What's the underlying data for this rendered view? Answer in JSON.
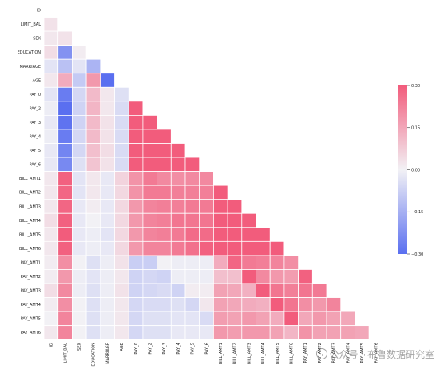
{
  "chart_data": {
    "type": "heatmap",
    "triangle": "lower",
    "labels": [
      "ID",
      "LIMIT_BAL",
      "SEX",
      "EDUCATION",
      "MARRIAGE",
      "AGE",
      "PAY_0",
      "PAY_2",
      "PAY_3",
      "PAY_4",
      "PAY_5",
      "PAY_6",
      "BILL_AMT1",
      "BILL_AMT2",
      "BILL_AMT3",
      "BILL_AMT4",
      "BILL_AMT5",
      "BILL_AMT6",
      "PAY_AMT1",
      "PAY_AMT2",
      "PAY_AMT3",
      "PAY_AMT4",
      "PAY_AMT5",
      "PAY_AMT6"
    ],
    "colorbar": {
      "vmin": -0.3,
      "vmax": 0.3,
      "ticks": [
        0.3,
        0.15,
        0.0,
        -0.15,
        -0.3
      ],
      "tick_labels": [
        "0.30",
        "0.15",
        "0.00",
        "−0.15",
        "−0.30"
      ],
      "colors": {
        "negative": "#5a6ff0",
        "neutral": "#f2f1f5",
        "positive": "#f25c7c"
      }
    },
    "rows": [
      [],
      [
        0.03
      ],
      [
        0.02,
        0.03
      ],
      [
        0.04,
        -0.22,
        0.01
      ],
      [
        -0.03,
        -0.11,
        -0.03,
        -0.14
      ],
      [
        0.02,
        0.14,
        -0.09,
        0.18,
        -0.3
      ],
      [
        -0.03,
        -0.27,
        -0.06,
        0.11,
        0.02,
        -0.04
      ],
      [
        -0.01,
        -0.3,
        -0.07,
        0.12,
        0.02,
        -0.05,
        0.3
      ],
      [
        -0.02,
        -0.29,
        -0.07,
        0.11,
        0.03,
        -0.05,
        0.3,
        0.3
      ],
      [
        -0.01,
        -0.27,
        -0.06,
        0.11,
        0.03,
        -0.05,
        0.3,
        0.3,
        0.3
      ],
      [
        -0.02,
        -0.25,
        -0.06,
        0.1,
        0.04,
        -0.05,
        0.3,
        0.3,
        0.3,
        0.3
      ],
      [
        -0.02,
        -0.24,
        -0.04,
        0.09,
        0.03,
        -0.05,
        0.3,
        0.3,
        0.3,
        0.3,
        0.3
      ],
      [
        0.02,
        0.29,
        -0.03,
        0.02,
        -0.02,
        0.06,
        0.19,
        0.24,
        0.21,
        0.2,
        0.21,
        0.21
      ],
      [
        0.02,
        0.28,
        -0.03,
        0.02,
        -0.02,
        0.05,
        0.19,
        0.24,
        0.24,
        0.23,
        0.23,
        0.23,
        0.3
      ],
      [
        0.02,
        0.28,
        -0.02,
        0.01,
        -0.02,
        0.05,
        0.18,
        0.22,
        0.23,
        0.23,
        0.24,
        0.24,
        0.3,
        0.3
      ],
      [
        0.04,
        0.29,
        -0.02,
        0.0,
        -0.02,
        0.05,
        0.18,
        0.22,
        0.23,
        0.25,
        0.25,
        0.25,
        0.3,
        0.3,
        0.3
      ],
      [
        0.02,
        0.3,
        -0.02,
        -0.01,
        -0.03,
        0.05,
        0.18,
        0.22,
        0.23,
        0.24,
        0.27,
        0.27,
        0.3,
        0.3,
        0.3,
        0.3
      ],
      [
        0.02,
        0.29,
        -0.02,
        -0.01,
        -0.02,
        0.05,
        0.18,
        0.22,
        0.22,
        0.24,
        0.26,
        0.29,
        0.3,
        0.3,
        0.3,
        0.3,
        0.3
      ],
      [
        0.01,
        0.2,
        0.0,
        -0.04,
        -0.01,
        0.03,
        -0.08,
        -0.08,
        0.0,
        -0.01,
        -0.01,
        -0.01,
        0.14,
        0.28,
        0.24,
        0.23,
        0.22,
        0.2
      ],
      [
        0.01,
        0.18,
        -0.01,
        -0.03,
        -0.01,
        0.02,
        -0.07,
        -0.06,
        -0.07,
        -0.01,
        -0.01,
        -0.01,
        0.1,
        0.1,
        0.3,
        0.21,
        0.18,
        0.17,
        0.29
      ],
      [
        0.04,
        0.21,
        -0.01,
        -0.04,
        -0.01,
        0.03,
        -0.07,
        -0.06,
        -0.05,
        -0.07,
        0.01,
        0.01,
        0.16,
        0.15,
        0.13,
        0.3,
        0.25,
        0.23,
        0.25,
        0.24
      ],
      [
        0.01,
        0.2,
        -0.0,
        -0.04,
        -0.01,
        0.02,
        -0.06,
        -0.05,
        -0.05,
        -0.04,
        -0.06,
        0.02,
        0.16,
        0.15,
        0.14,
        0.13,
        0.3,
        0.25,
        0.2,
        0.18,
        0.22
      ],
      [
        0.0,
        0.22,
        -0.0,
        -0.04,
        -0.01,
        0.02,
        -0.06,
        -0.04,
        -0.04,
        -0.03,
        -0.03,
        -0.05,
        0.17,
        0.16,
        0.18,
        0.16,
        0.14,
        0.3,
        0.15,
        0.18,
        0.16,
        0.15
      ],
      [
        0.02,
        0.22,
        -0.0,
        -0.04,
        -0.01,
        0.02,
        -0.06,
        -0.04,
        -0.04,
        -0.02,
        -0.02,
        -0.02,
        0.18,
        0.17,
        0.18,
        0.18,
        0.16,
        0.12,
        0.19,
        0.16,
        0.16,
        0.16,
        0.15
      ]
    ]
  },
  "watermark": {
    "text": "公众号 · 布鲁数据研究室"
  }
}
